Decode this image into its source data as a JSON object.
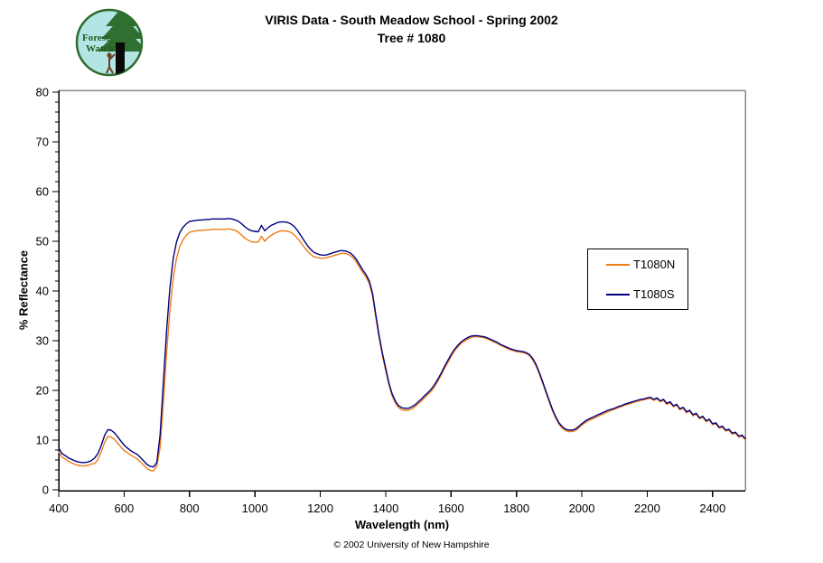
{
  "header": {
    "title_line1": "VIRIS Data - South Meadow School - Spring 2002",
    "title_line2": "Tree # 1080",
    "logo": {
      "line1": "Forest",
      "line2": "Watch"
    }
  },
  "footer": {
    "copyright": "© 2002 University of New Hampshire"
  },
  "chart_data": {
    "type": "line",
    "title": "VIRIS Data - South Meadow School - Spring 2002 — Tree # 1080",
    "xlabel": "Wavelength (nm)",
    "ylabel": "% Reflectance",
    "xlim": [
      400,
      2500
    ],
    "ylim": [
      0,
      80
    ],
    "x_ticks": [
      400,
      600,
      800,
      1000,
      1200,
      1400,
      1600,
      1800,
      2000,
      2200,
      2400
    ],
    "y_ticks": [
      0,
      10,
      20,
      30,
      40,
      50,
      60,
      70,
      80
    ],
    "y_minor_step": 2,
    "grid": false,
    "legend_position": "right-middle",
    "plot_border_color": "#888888",
    "axis_color": "#000000",
    "x_start": 400,
    "x_step": 10,
    "series": [
      {
        "name": "T1080N",
        "color": "#EE7C17",
        "values": [
          7.7,
          6.6,
          6.2,
          5.7,
          5.4,
          5.1,
          4.9,
          4.8,
          4.8,
          4.9,
          5.2,
          5.3,
          6.1,
          7.6,
          9.5,
          10.7,
          10.6,
          10.2,
          9.4,
          8.6,
          7.9,
          7.5,
          7.0,
          6.6,
          6.2,
          5.6,
          4.9,
          4.3,
          3.9,
          3.8,
          4.8,
          8.5,
          17.5,
          27.5,
          36.0,
          42.5,
          46.5,
          48.9,
          50.3,
          51.2,
          51.8,
          52.0,
          52.1,
          52.2,
          52.2,
          52.3,
          52.3,
          52.4,
          52.4,
          52.4,
          52.4,
          52.4,
          52.5,
          52.4,
          52.2,
          51.8,
          51.2,
          50.6,
          50.2,
          49.9,
          49.8,
          49.8,
          51.0,
          50.0,
          50.7,
          51.2,
          51.6,
          51.9,
          52.1,
          52.1,
          52.0,
          51.8,
          51.3,
          50.6,
          49.8,
          48.9,
          48.1,
          47.4,
          46.9,
          46.7,
          46.6,
          46.6,
          46.7,
          46.9,
          47.1,
          47.3,
          47.5,
          47.6,
          47.5,
          47.2,
          46.7,
          45.9,
          44.8,
          43.7,
          42.8,
          41.5,
          39.0,
          34.7,
          30.5,
          27.0,
          24.0,
          21.1,
          18.9,
          17.4,
          16.5,
          16.1,
          16.0,
          16.0,
          16.3,
          16.7,
          17.3,
          17.9,
          18.6,
          19.2,
          19.9,
          20.8,
          21.9,
          23.1,
          24.4,
          25.6,
          26.8,
          27.9,
          28.7,
          29.4,
          29.9,
          30.3,
          30.6,
          30.8,
          30.8,
          30.7,
          30.6,
          30.4,
          30.1,
          29.8,
          29.5,
          29.1,
          28.8,
          28.5,
          28.2,
          28.0,
          27.8,
          27.7,
          27.6,
          27.4,
          27.0,
          26.1,
          24.9,
          23.3,
          21.5,
          19.6,
          17.7,
          15.9,
          14.4,
          13.2,
          12.4,
          11.9,
          11.7,
          11.7,
          11.9,
          12.4,
          13.0,
          13.5,
          13.9,
          14.2,
          14.5,
          14.8,
          15.1,
          15.4,
          15.7,
          16.0,
          16.2,
          16.5,
          16.7,
          17.0,
          17.2,
          17.4,
          17.6,
          17.8,
          18.0,
          18.1,
          18.3,
          18.4,
          18.0,
          18.3,
          17.7,
          18.0,
          17.2,
          17.5,
          16.7,
          17.0,
          16.1,
          16.4,
          15.5,
          15.8,
          14.9,
          15.2,
          14.3,
          14.6,
          13.7,
          14.0,
          13.1,
          13.3,
          12.4,
          12.6,
          11.8,
          12.0,
          11.2,
          11.4,
          10.6,
          10.8,
          10.1
        ]
      },
      {
        "name": "T1080S",
        "color": "#000080",
        "values": [
          8.4,
          7.3,
          6.9,
          6.4,
          6.1,
          5.8,
          5.6,
          5.5,
          5.5,
          5.6,
          5.9,
          6.4,
          7.3,
          8.9,
          10.9,
          12.1,
          12.0,
          11.5,
          10.7,
          9.8,
          9.0,
          8.4,
          7.9,
          7.5,
          7.1,
          6.5,
          5.8,
          5.1,
          4.7,
          4.6,
          5.5,
          11.0,
          21.5,
          32.0,
          40.5,
          46.5,
          49.8,
          51.7,
          52.8,
          53.5,
          54.0,
          54.1,
          54.2,
          54.3,
          54.3,
          54.4,
          54.4,
          54.5,
          54.5,
          54.5,
          54.5,
          54.5,
          54.6,
          54.5,
          54.3,
          54.0,
          53.5,
          52.9,
          52.4,
          52.1,
          52.0,
          51.9,
          53.2,
          52.1,
          52.7,
          53.2,
          53.5,
          53.8,
          53.9,
          53.9,
          53.8,
          53.5,
          53.0,
          52.2,
          51.2,
          50.2,
          49.2,
          48.4,
          47.8,
          47.5,
          47.3,
          47.2,
          47.3,
          47.5,
          47.7,
          47.9,
          48.1,
          48.1,
          48.0,
          47.7,
          47.2,
          46.4,
          45.3,
          44.2,
          43.3,
          42.0,
          39.5,
          35.2,
          31.0,
          27.5,
          24.5,
          21.5,
          19.3,
          17.8,
          16.9,
          16.5,
          16.4,
          16.4,
          16.7,
          17.1,
          17.7,
          18.3,
          19.0,
          19.6,
          20.3,
          21.2,
          22.3,
          23.5,
          24.8,
          26.0,
          27.2,
          28.2,
          29.0,
          29.7,
          30.2,
          30.6,
          30.9,
          31.0,
          31.0,
          30.9,
          30.8,
          30.6,
          30.3,
          30.0,
          29.7,
          29.3,
          29.0,
          28.7,
          28.4,
          28.2,
          28.0,
          27.9,
          27.8,
          27.6,
          27.2,
          26.4,
          25.2,
          23.6,
          21.8,
          19.9,
          18.0,
          16.2,
          14.7,
          13.5,
          12.7,
          12.2,
          12.0,
          12.0,
          12.2,
          12.7,
          13.3,
          13.8,
          14.2,
          14.5,
          14.8,
          15.1,
          15.4,
          15.7,
          16.0,
          16.2,
          16.4,
          16.7,
          16.9,
          17.2,
          17.4,
          17.6,
          17.8,
          18.0,
          18.2,
          18.3,
          18.5,
          18.6,
          18.2,
          18.5,
          17.9,
          18.2,
          17.4,
          17.7,
          16.9,
          17.2,
          16.3,
          16.6,
          15.7,
          16.0,
          15.1,
          15.4,
          14.5,
          14.8,
          13.9,
          14.2,
          13.3,
          13.5,
          12.6,
          12.8,
          12.0,
          12.2,
          11.4,
          11.6,
          10.8,
          11.0,
          10.3
        ]
      }
    ]
  }
}
